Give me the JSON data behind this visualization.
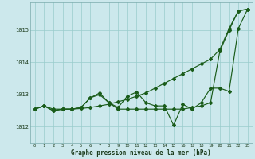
{
  "background_color": "#cce8ec",
  "grid_color": "#99cccc",
  "line_color": "#1a5c1a",
  "x_ticks": [
    0,
    1,
    2,
    3,
    4,
    5,
    6,
    7,
    8,
    9,
    10,
    11,
    12,
    13,
    14,
    15,
    16,
    17,
    18,
    19,
    20,
    21,
    22,
    23
  ],
  "ylim": [
    1011.5,
    1015.85
  ],
  "yticks": [
    1012,
    1013,
    1014,
    1015
  ],
  "xlabel": "Graphe pression niveau de la mer (hPa)",
  "series1": [
    1012.55,
    1012.65,
    1012.55,
    1012.55,
    1012.55,
    1012.57,
    1012.6,
    1012.65,
    1012.7,
    1012.78,
    1012.85,
    1012.95,
    1013.05,
    1013.2,
    1013.35,
    1013.5,
    1013.65,
    1013.8,
    1013.95,
    1014.1,
    1014.4,
    1015.05,
    1015.6,
    1015.65
  ],
  "series2": [
    1012.55,
    1012.65,
    1012.5,
    1012.55,
    1012.55,
    1012.6,
    1012.9,
    1013.05,
    1012.75,
    1012.6,
    1012.95,
    1013.08,
    1012.75,
    1012.65,
    1012.65,
    1012.05,
    1012.7,
    1012.55,
    1012.75,
    1013.2,
    1013.2,
    1013.1,
    1015.05,
    1015.65
  ],
  "series3": [
    1012.55,
    1012.65,
    1012.5,
    1012.55,
    1012.55,
    1012.6,
    1012.9,
    1013.0,
    1012.75,
    1012.55,
    1012.55,
    1012.55,
    1012.55,
    1012.55,
    1012.55,
    1012.55,
    1012.55,
    1012.6,
    1012.65,
    1012.75,
    1014.35,
    1015.0,
    1015.6,
    1015.65
  ]
}
